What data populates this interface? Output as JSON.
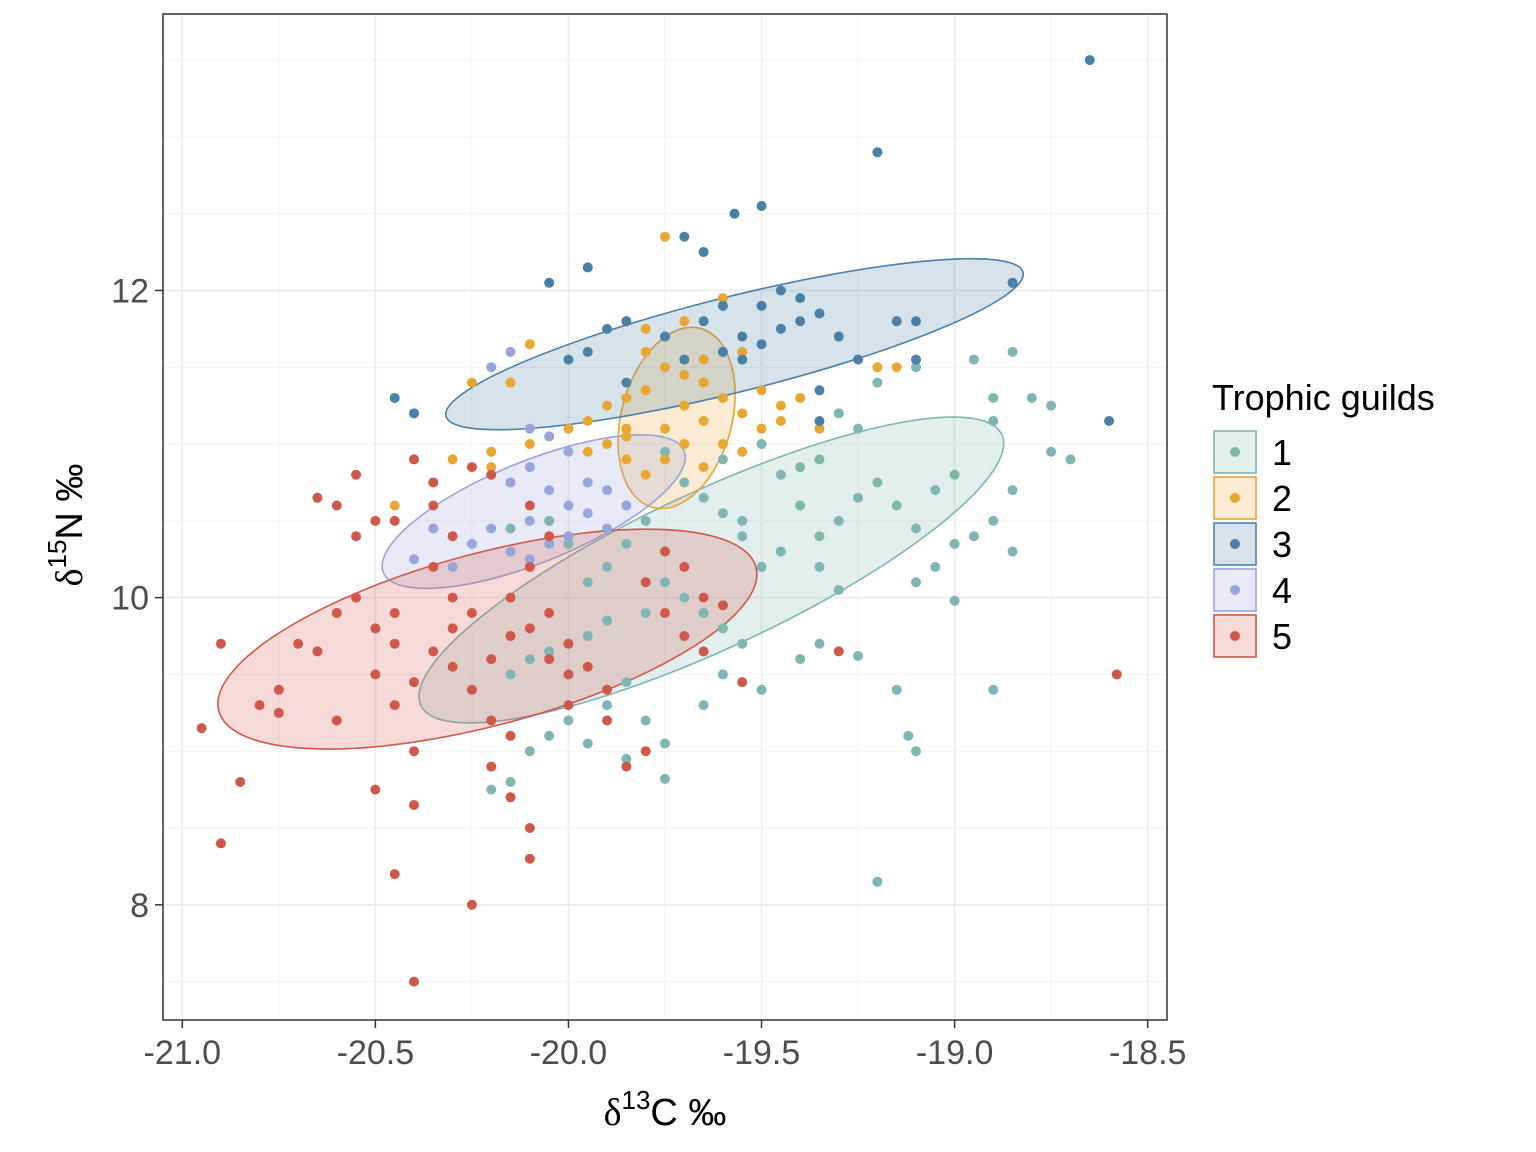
{
  "chart_data": {
    "type": "scatter",
    "xlabel": {
      "symbol": "δ",
      "sup": "13",
      "rest": "C ‰"
    },
    "ylabel": {
      "symbol": "δ",
      "sup": "15",
      "rest": "N ‰"
    },
    "xlim": [
      -21.05,
      -18.45
    ],
    "ylim": [
      7.25,
      13.8
    ],
    "xticks": [
      -21.0,
      -20.5,
      -20.0,
      -19.5,
      -19.0,
      -18.5
    ],
    "xtick_labels": [
      "-21.0",
      "-20.5",
      "-20.0",
      "-19.5",
      "-19.0",
      "-18.5"
    ],
    "yticks": [
      8,
      10,
      12
    ],
    "ytick_labels": [
      "8",
      "10",
      "12"
    ],
    "grid": true,
    "legend": {
      "title": "Trophic guilds",
      "position": "right"
    },
    "series": [
      {
        "name": "1",
        "color": "#7fb5b3",
        "ellipse": {
          "cx": -19.63,
          "cy": 10.18,
          "rx": 0.83,
          "ry": 0.51,
          "angle_deg": -25
        },
        "points": [
          [
            -19.2,
            11.4
          ],
          [
            -19.1,
            11.5
          ],
          [
            -18.95,
            11.55
          ],
          [
            -18.85,
            11.6
          ],
          [
            -18.9,
            11.3
          ],
          [
            -18.8,
            11.3
          ],
          [
            -18.9,
            11.15
          ],
          [
            -18.75,
            11.25
          ],
          [
            -18.7,
            10.9
          ],
          [
            -18.75,
            10.95
          ],
          [
            -19.3,
            11.2
          ],
          [
            -19.25,
            11.1
          ],
          [
            -19.35,
            10.9
          ],
          [
            -19.4,
            10.85
          ],
          [
            -19.2,
            10.75
          ],
          [
            -19.25,
            10.65
          ],
          [
            -19.3,
            10.5
          ],
          [
            -19.35,
            10.4
          ],
          [
            -19.15,
            10.6
          ],
          [
            -19.1,
            10.45
          ],
          [
            -19.05,
            10.7
          ],
          [
            -19.0,
            10.8
          ],
          [
            -19.0,
            10.35
          ],
          [
            -19.05,
            10.2
          ],
          [
            -19.1,
            10.1
          ],
          [
            -18.95,
            10.4
          ],
          [
            -18.9,
            10.5
          ],
          [
            -18.85,
            10.3
          ],
          [
            -18.85,
            10.7
          ],
          [
            -19.0,
            9.98
          ],
          [
            -19.25,
            9.62
          ],
          [
            -19.15,
            9.4
          ],
          [
            -19.1,
            9.0
          ],
          [
            -19.12,
            9.1
          ],
          [
            -18.9,
            9.4
          ],
          [
            -19.2,
            8.15
          ],
          [
            -19.4,
            9.6
          ],
          [
            -19.35,
            9.7
          ],
          [
            -19.5,
            9.4
          ],
          [
            -19.55,
            9.7
          ],
          [
            -19.6,
            9.8
          ],
          [
            -19.65,
            9.9
          ],
          [
            -19.7,
            10.0
          ],
          [
            -19.75,
            10.1
          ],
          [
            -19.5,
            10.2
          ],
          [
            -19.45,
            10.3
          ],
          [
            -19.55,
            10.4
          ],
          [
            -19.6,
            10.55
          ],
          [
            -19.65,
            10.65
          ],
          [
            -19.7,
            10.75
          ],
          [
            -19.45,
            10.8
          ],
          [
            -19.4,
            10.6
          ],
          [
            -19.35,
            10.2
          ],
          [
            -19.3,
            10.05
          ],
          [
            -19.8,
            10.5
          ],
          [
            -19.85,
            10.35
          ],
          [
            -19.9,
            10.2
          ],
          [
            -19.95,
            10.1
          ],
          [
            -19.8,
            9.9
          ],
          [
            -19.9,
            9.85
          ],
          [
            -19.95,
            9.75
          ],
          [
            -20.05,
            9.65
          ],
          [
            -20.1,
            9.6
          ],
          [
            -20.15,
            9.5
          ],
          [
            -19.85,
            9.45
          ],
          [
            -19.9,
            9.3
          ],
          [
            -20.0,
            9.2
          ],
          [
            -20.05,
            9.1
          ],
          [
            -20.1,
            9.0
          ],
          [
            -19.95,
            9.05
          ],
          [
            -19.85,
            8.95
          ],
          [
            -19.75,
            8.82
          ],
          [
            -20.2,
            8.75
          ],
          [
            -20.15,
            8.8
          ],
          [
            -19.8,
            9.2
          ],
          [
            -19.75,
            9.05
          ],
          [
            -19.6,
            9.5
          ],
          [
            -19.65,
            9.3
          ],
          [
            -20.15,
            10.45
          ],
          [
            -20.05,
            10.5
          ],
          [
            -20.0,
            10.35
          ],
          [
            -19.6,
            10.9
          ],
          [
            -19.75,
            10.95
          ],
          [
            -19.5,
            11.0
          ],
          [
            -19.55,
            10.5
          ]
        ]
      },
      {
        "name": "2",
        "color": "#e8a632",
        "ellipse": {
          "cx": -19.72,
          "cy": 11.17,
          "rx": 0.24,
          "ry": 0.36,
          "angle_deg": -75
        },
        "points": [
          [
            -19.75,
            12.35
          ],
          [
            -20.1,
            11.65
          ],
          [
            -20.15,
            11.4
          ],
          [
            -20.25,
            11.4
          ],
          [
            -19.6,
            11.95
          ],
          [
            -19.7,
            11.8
          ],
          [
            -19.8,
            11.75
          ],
          [
            -19.8,
            11.6
          ],
          [
            -19.65,
            11.55
          ],
          [
            -19.75,
            11.5
          ],
          [
            -19.65,
            11.4
          ],
          [
            -19.6,
            11.3
          ],
          [
            -19.7,
            11.25
          ],
          [
            -19.8,
            11.35
          ],
          [
            -19.85,
            11.3
          ],
          [
            -19.9,
            11.25
          ],
          [
            -19.95,
            11.15
          ],
          [
            -20.0,
            11.1
          ],
          [
            -19.85,
            11.05
          ],
          [
            -19.75,
            11.1
          ],
          [
            -19.65,
            11.15
          ],
          [
            -19.55,
            11.2
          ],
          [
            -19.5,
            11.1
          ],
          [
            -19.45,
            11.15
          ],
          [
            -19.35,
            11.1
          ],
          [
            -19.7,
            11.0
          ],
          [
            -19.6,
            11.0
          ],
          [
            -19.55,
            10.95
          ],
          [
            -19.75,
            10.9
          ],
          [
            -19.65,
            10.85
          ],
          [
            -19.8,
            10.8
          ],
          [
            -19.85,
            10.9
          ],
          [
            -19.95,
            10.95
          ],
          [
            -20.05,
            11.05
          ],
          [
            -20.1,
            11.0
          ],
          [
            -20.2,
            10.95
          ],
          [
            -20.3,
            10.9
          ],
          [
            -19.5,
            11.35
          ],
          [
            -19.45,
            11.25
          ],
          [
            -19.4,
            11.3
          ],
          [
            -19.15,
            11.5
          ],
          [
            -19.2,
            11.5
          ],
          [
            -19.85,
            11.1
          ],
          [
            -19.9,
            11.0
          ],
          [
            -19.55,
            11.6
          ],
          [
            -20.45,
            10.6
          ],
          [
            -20.35,
            10.45
          ],
          [
            -20.2,
            10.85
          ],
          [
            -19.7,
            11.45
          ]
        ]
      },
      {
        "name": "3",
        "color": "#4a80a6",
        "ellipse": {
          "cx": -19.57,
          "cy": 11.65,
          "rx": 0.77,
          "ry": 0.31,
          "angle_deg": -14
        },
        "points": [
          [
            -18.65,
            13.5
          ],
          [
            -19.2,
            12.9
          ],
          [
            -19.5,
            12.55
          ],
          [
            -19.57,
            12.5
          ],
          [
            -19.7,
            12.35
          ],
          [
            -19.65,
            12.25
          ],
          [
            -20.05,
            12.05
          ],
          [
            -19.95,
            12.15
          ],
          [
            -18.85,
            12.05
          ],
          [
            -19.45,
            12.0
          ],
          [
            -19.4,
            11.95
          ],
          [
            -19.5,
            11.9
          ],
          [
            -19.6,
            11.9
          ],
          [
            -19.65,
            11.8
          ],
          [
            -19.4,
            11.8
          ],
          [
            -19.35,
            11.85
          ],
          [
            -19.45,
            11.75
          ],
          [
            -19.55,
            11.7
          ],
          [
            -19.3,
            11.7
          ],
          [
            -19.5,
            11.65
          ],
          [
            -19.55,
            11.55
          ],
          [
            -19.25,
            11.55
          ],
          [
            -19.75,
            11.7
          ],
          [
            -19.85,
            11.8
          ],
          [
            -19.9,
            11.75
          ],
          [
            -19.95,
            11.6
          ],
          [
            -20.0,
            11.55
          ],
          [
            -19.15,
            11.8
          ],
          [
            -19.1,
            11.8
          ],
          [
            -19.1,
            11.55
          ],
          [
            -19.35,
            11.35
          ],
          [
            -19.35,
            11.15
          ],
          [
            -20.45,
            11.3
          ],
          [
            -20.4,
            11.2
          ],
          [
            -18.6,
            11.15
          ],
          [
            -19.85,
            11.4
          ],
          [
            -19.7,
            11.55
          ],
          [
            -19.6,
            11.6
          ]
        ]
      },
      {
        "name": "4",
        "color": "#98a4dc",
        "ellipse": {
          "cx": -20.09,
          "cy": 10.56,
          "rx": 0.42,
          "ry": 0.33,
          "angle_deg": -22
        },
        "points": [
          [
            -20.15,
            11.6
          ],
          [
            -20.2,
            11.5
          ],
          [
            -20.35,
            10.45
          ],
          [
            -20.1,
            11.1
          ],
          [
            -20.05,
            11.05
          ],
          [
            -20.0,
            10.95
          ],
          [
            -20.1,
            10.85
          ],
          [
            -20.15,
            10.75
          ],
          [
            -20.05,
            10.7
          ],
          [
            -20.0,
            10.6
          ],
          [
            -19.95,
            10.55
          ],
          [
            -20.1,
            10.5
          ],
          [
            -20.2,
            10.45
          ],
          [
            -20.0,
            10.4
          ],
          [
            -19.9,
            10.45
          ],
          [
            -20.05,
            10.35
          ],
          [
            -20.15,
            10.3
          ],
          [
            -20.25,
            10.35
          ],
          [
            -19.95,
            10.75
          ],
          [
            -20.3,
            10.2
          ],
          [
            -20.4,
            10.25
          ],
          [
            -19.9,
            10.7
          ],
          [
            -19.85,
            10.6
          ],
          [
            -20.1,
            10.25
          ]
        ]
      },
      {
        "name": "5",
        "color": "#d0584a",
        "ellipse": {
          "cx": -20.21,
          "cy": 9.73,
          "rx": 0.72,
          "ry": 0.56,
          "angle_deg": -15
        },
        "points": [
          [
            -20.95,
            9.15
          ],
          [
            -20.9,
            8.4
          ],
          [
            -20.9,
            9.7
          ],
          [
            -20.85,
            8.8
          ],
          [
            -20.8,
            9.3
          ],
          [
            -20.75,
            9.4
          ],
          [
            -20.7,
            9.7
          ],
          [
            -20.75,
            9.25
          ],
          [
            -20.65,
            9.65
          ],
          [
            -20.6,
            9.2
          ],
          [
            -20.6,
            9.9
          ],
          [
            -20.55,
            10.4
          ],
          [
            -20.6,
            10.6
          ],
          [
            -20.5,
            10.5
          ],
          [
            -20.55,
            10.0
          ],
          [
            -20.5,
            9.8
          ],
          [
            -20.45,
            9.7
          ],
          [
            -20.5,
            9.5
          ],
          [
            -20.45,
            9.3
          ],
          [
            -20.4,
            9.0
          ],
          [
            -20.5,
            8.75
          ],
          [
            -20.4,
            8.65
          ],
          [
            -20.45,
            8.2
          ],
          [
            -20.4,
            10.9
          ],
          [
            -20.35,
            10.75
          ],
          [
            -20.3,
            10.4
          ],
          [
            -20.35,
            10.2
          ],
          [
            -20.3,
            10.0
          ],
          [
            -20.25,
            9.9
          ],
          [
            -20.3,
            9.8
          ],
          [
            -20.2,
            9.6
          ],
          [
            -20.25,
            9.4
          ],
          [
            -20.2,
            9.2
          ],
          [
            -20.15,
            9.1
          ],
          [
            -20.2,
            8.9
          ],
          [
            -20.15,
            8.7
          ],
          [
            -20.1,
            8.5
          ],
          [
            -20.1,
            8.3
          ],
          [
            -20.25,
            8.0
          ],
          [
            -20.4,
            7.5
          ],
          [
            -20.2,
            10.8
          ],
          [
            -20.1,
            10.6
          ],
          [
            -20.05,
            10.4
          ],
          [
            -20.1,
            10.2
          ],
          [
            -20.15,
            10.0
          ],
          [
            -20.05,
            9.9
          ],
          [
            -20.1,
            9.8
          ],
          [
            -20.0,
            9.7
          ],
          [
            -20.05,
            9.6
          ],
          [
            -19.95,
            9.55
          ],
          [
            -19.9,
            9.4
          ],
          [
            -20.0,
            9.3
          ],
          [
            -19.9,
            9.2
          ],
          [
            -19.85,
            8.9
          ],
          [
            -19.8,
            9.0
          ],
          [
            -19.75,
            9.9
          ],
          [
            -19.8,
            10.1
          ],
          [
            -19.75,
            10.3
          ],
          [
            -19.7,
            10.2
          ],
          [
            -19.65,
            10.0
          ],
          [
            -19.6,
            9.95
          ],
          [
            -19.7,
            9.75
          ],
          [
            -19.65,
            9.65
          ],
          [
            -19.55,
            9.45
          ],
          [
            -19.3,
            9.65
          ],
          [
            -18.58,
            9.5
          ],
          [
            -20.65,
            10.65
          ],
          [
            -20.55,
            10.8
          ],
          [
            -20.45,
            10.5
          ],
          [
            -20.25,
            10.85
          ],
          [
            -20.35,
            10.6
          ],
          [
            -20.0,
            9.5
          ],
          [
            -20.15,
            9.75
          ],
          [
            -20.3,
            9.55
          ],
          [
            -20.4,
            9.45
          ],
          [
            -20.45,
            9.9
          ],
          [
            -20.35,
            9.65
          ]
        ]
      }
    ]
  }
}
